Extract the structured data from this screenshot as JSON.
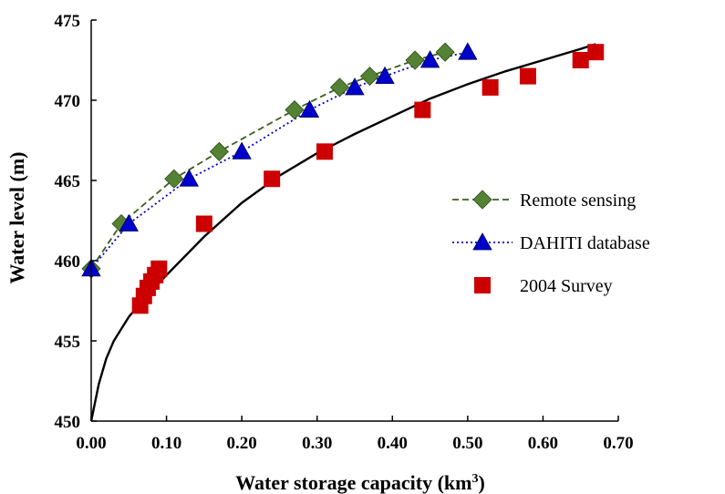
{
  "chart_data": {
    "type": "scatter",
    "xlabel": "Water storage capacity (km",
    "xlabel_sup": "3",
    "xlabel_close": ")",
    "ylabel": "Water level (m)",
    "xlim": [
      0,
      0.7
    ],
    "ylim": [
      450,
      475
    ],
    "x_ticks": [
      0,
      0.1,
      0.2,
      0.3,
      0.4,
      0.5,
      0.6,
      0.7
    ],
    "x_tick_labels": [
      "0.00",
      "0.10",
      "0.20",
      "0.30",
      "0.40",
      "0.50",
      "0.60",
      "0.70"
    ],
    "y_ticks": [
      450,
      455,
      460,
      465,
      470,
      475
    ],
    "y_tick_labels": [
      "450",
      "455",
      "460",
      "465",
      "470",
      "475"
    ],
    "grid": false,
    "legend_position": "right-center",
    "series": [
      {
        "name": "Remote sensing",
        "marker": "diamond",
        "line": "dashed",
        "color": "#548235",
        "line_color": "#3a5f1e",
        "x": [
          0.0,
          0.04,
          0.11,
          0.17,
          0.27,
          0.33,
          0.37,
          0.43,
          0.47
        ],
        "y": [
          459.5,
          462.3,
          465.1,
          466.8,
          469.4,
          470.8,
          471.5,
          472.5,
          473.0
        ]
      },
      {
        "name": "DAHITI database",
        "marker": "triangle",
        "line": "dotted",
        "color": "#0000cc",
        "line_color": "#0000cc",
        "x": [
          0.0,
          0.05,
          0.13,
          0.2,
          0.29,
          0.35,
          0.39,
          0.45,
          0.5
        ],
        "y": [
          459.5,
          462.3,
          465.1,
          466.8,
          469.4,
          470.8,
          471.5,
          472.5,
          473.0
        ]
      },
      {
        "name": "2004 Survey",
        "marker": "square",
        "line": "none",
        "color": "#cc0000",
        "line_color": "#cc0000",
        "x": [
          0.065,
          0.07,
          0.075,
          0.08,
          0.085,
          0.09,
          0.15,
          0.24,
          0.31,
          0.44,
          0.53,
          0.58,
          0.65,
          0.67
        ],
        "y": [
          457.2,
          457.8,
          458.3,
          458.7,
          459.1,
          459.5,
          462.3,
          465.1,
          466.8,
          469.4,
          470.8,
          471.5,
          472.5,
          473.0
        ]
      }
    ],
    "trendline": {
      "type": "logarithmic",
      "color": "#000000",
      "x": [
        0.0,
        0.01,
        0.02,
        0.03,
        0.05,
        0.07,
        0.1,
        0.15,
        0.2,
        0.25,
        0.3,
        0.35,
        0.4,
        0.45,
        0.5,
        0.55,
        0.6,
        0.65,
        0.67
      ],
      "y": [
        450.0,
        452.3,
        453.9,
        455.0,
        456.5,
        457.6,
        459.1,
        461.5,
        463.6,
        465.3,
        466.7,
        467.9,
        469.0,
        470.1,
        471.0,
        471.8,
        472.5,
        473.2,
        473.5
      ]
    }
  }
}
